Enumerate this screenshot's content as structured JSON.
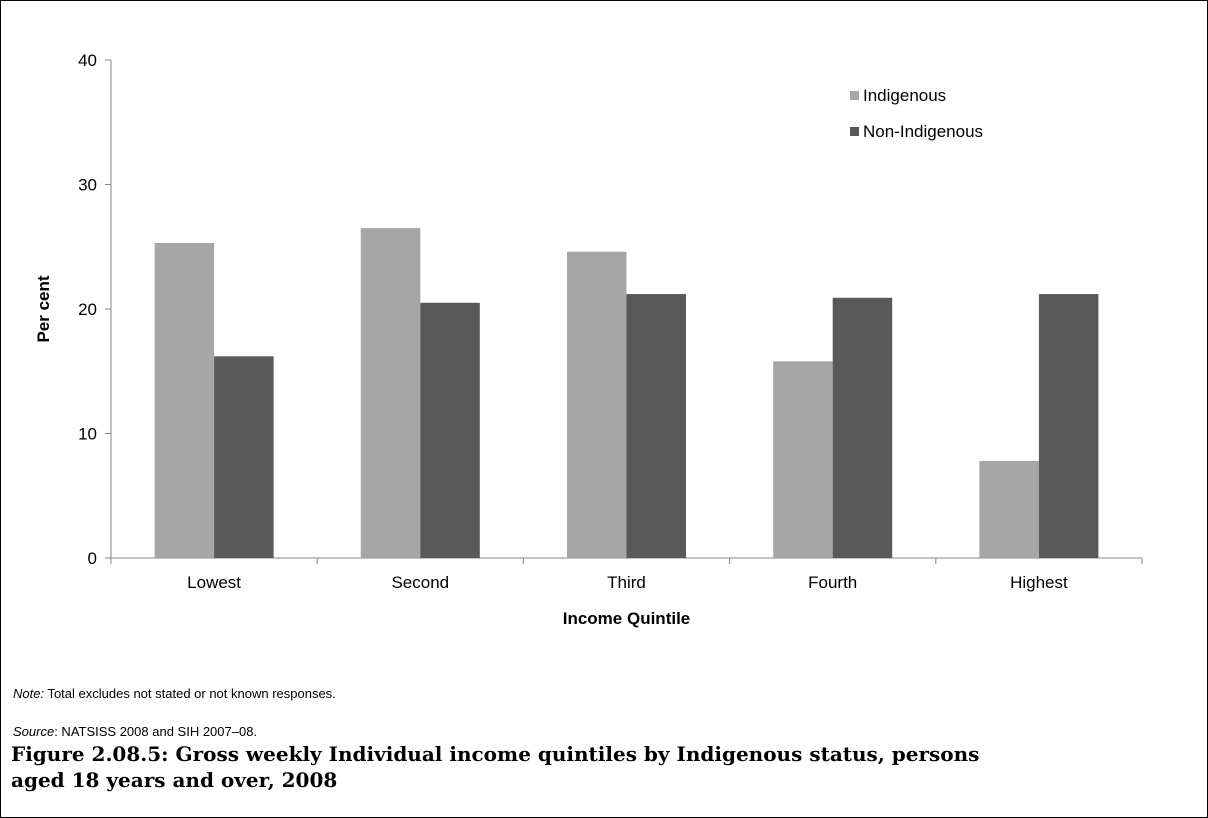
{
  "chart_data": {
    "type": "bar",
    "categories": [
      "Lowest",
      "Second",
      "Third",
      "Fourth",
      "Highest"
    ],
    "series": [
      {
        "name": "Indigenous",
        "values": [
          25.3,
          26.5,
          24.6,
          15.8,
          7.8
        ],
        "color": "#a6a6a6"
      },
      {
        "name": "Non-Indigenous",
        "values": [
          16.2,
          20.5,
          21.2,
          20.9,
          21.2
        ],
        "color": "#595959"
      }
    ],
    "xlabel": "Income Quintile",
    "ylabel": "Per cent",
    "ylim": [
      0,
      40
    ],
    "yticks": [
      0,
      10,
      20,
      30,
      40
    ],
    "grid": false,
    "legend_position": "top-right"
  },
  "note": {
    "label": "Note:",
    "text": " Total excludes not stated or not known responses."
  },
  "source": {
    "label": "Source",
    "text": ": NATSISS 2008 and SIH 2007–08."
  },
  "caption": "Figure 2.08.5: Gross weekly Individual income quintiles by Indigenous status, persons aged 18 years and over, 2008"
}
